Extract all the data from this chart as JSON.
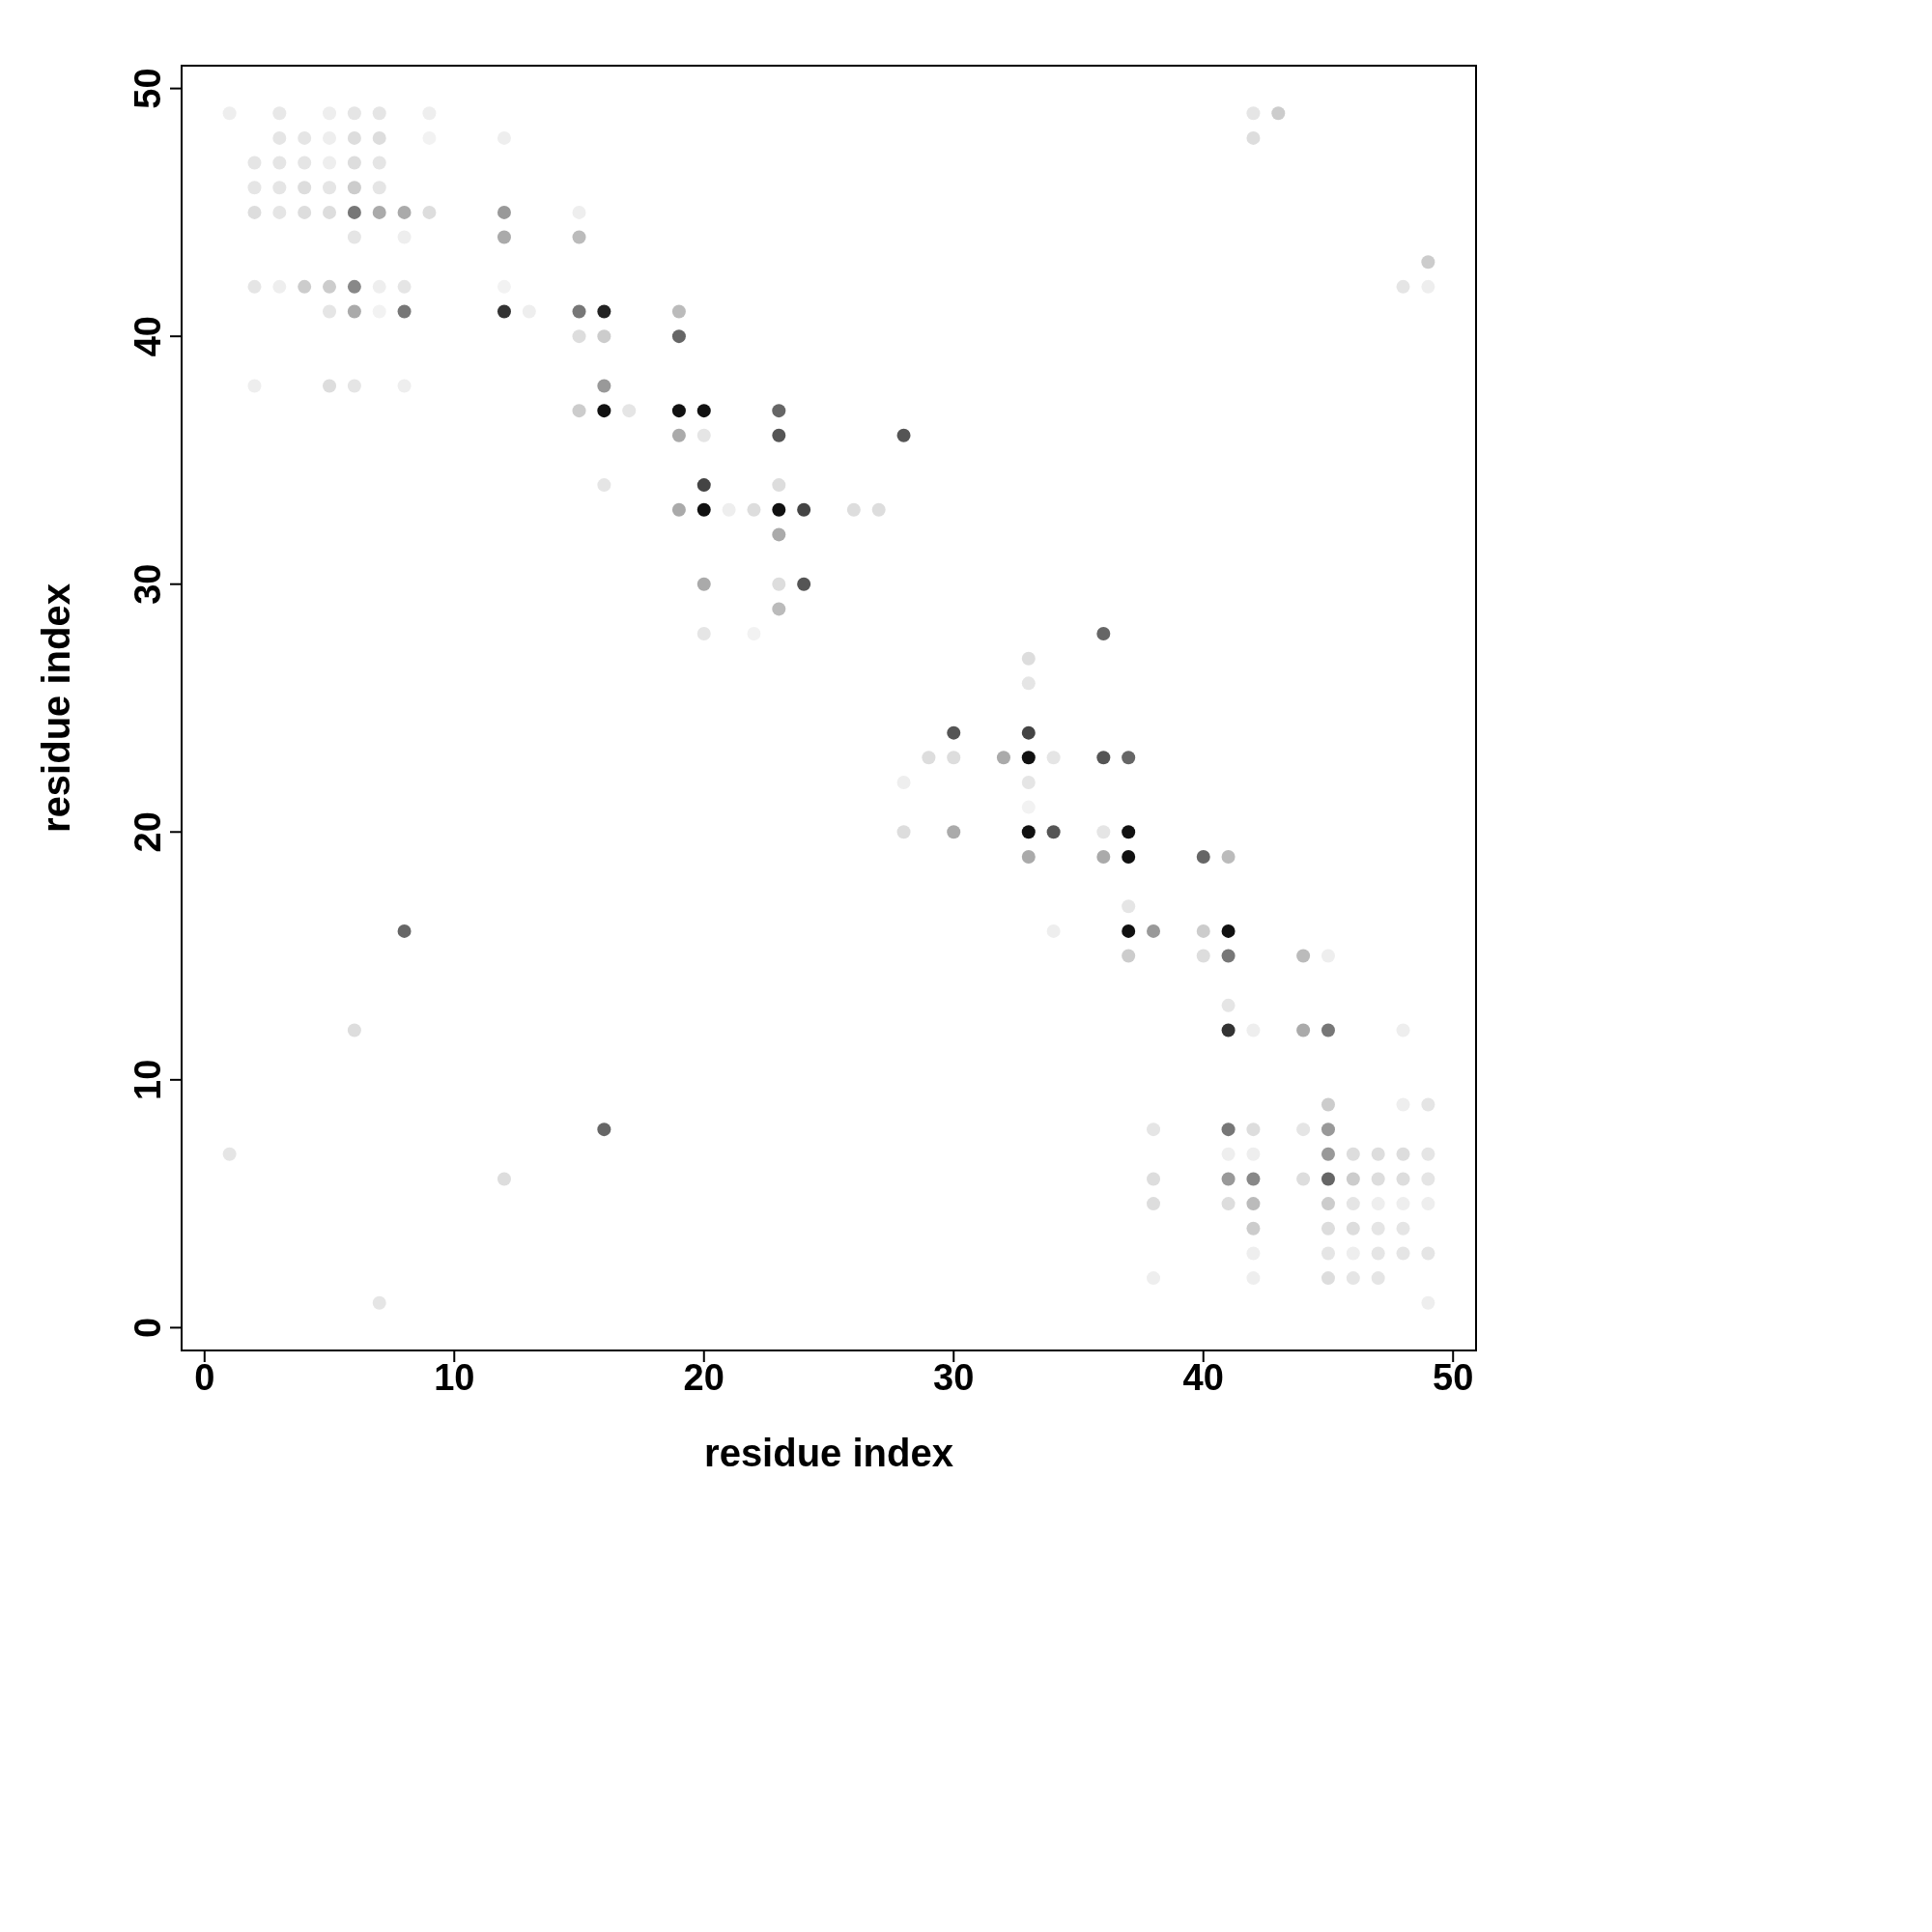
{
  "chart_data": {
    "type": "scatter",
    "xlabel": "residue index",
    "ylabel": "residue index",
    "xlim": [
      -0.92,
      50.92
    ],
    "ylim": [
      -0.92,
      50.92
    ],
    "xticks": [
      0,
      10,
      20,
      30,
      40,
      50
    ],
    "yticks": [
      0,
      10,
      20,
      30,
      40,
      50
    ],
    "grid": false,
    "marker": "circle",
    "x": [
      1,
      3,
      5,
      6,
      7,
      9,
      42,
      43,
      3,
      4,
      5,
      6,
      7,
      9,
      12,
      42,
      2,
      3,
      4,
      5,
      6,
      7,
      2,
      3,
      4,
      5,
      6,
      7,
      2,
      3,
      4,
      5,
      6,
      7,
      8,
      9,
      12,
      15,
      6,
      8,
      12,
      15,
      49,
      2,
      3,
      4,
      5,
      6,
      7,
      8,
      12,
      48,
      49,
      5,
      6,
      7,
      8,
      12,
      13,
      15,
      16,
      19,
      15,
      16,
      19,
      2,
      5,
      6,
      8,
      16,
      15,
      16,
      17,
      19,
      20,
      23,
      19,
      20,
      23,
      28,
      16,
      20,
      23,
      19,
      20,
      21,
      22,
      23,
      24,
      26,
      27,
      23,
      20,
      23,
      24,
      23,
      20,
      22,
      36,
      33,
      33,
      30,
      33,
      29,
      30,
      32,
      33,
      34,
      36,
      37,
      28,
      33,
      33,
      28,
      30,
      33,
      34,
      36,
      37,
      33,
      36,
      37,
      40,
      41,
      37,
      8,
      34,
      37,
      38,
      40,
      41,
      37,
      40,
      41,
      44,
      45,
      41,
      6,
      41,
      42,
      44,
      45,
      48,
      45,
      48,
      49,
      16,
      38,
      41,
      42,
      44,
      45,
      1,
      41,
      42,
      45,
      46,
      47,
      48,
      49,
      12,
      38,
      41,
      42,
      44,
      45,
      46,
      47,
      48,
      49,
      38,
      41,
      42,
      45,
      46,
      47,
      48,
      49,
      42,
      45,
      46,
      47,
      48,
      42,
      45,
      46,
      47,
      48,
      49,
      38,
      42,
      45,
      46,
      47,
      7,
      49
    ],
    "values": [
      49,
      49,
      49,
      49,
      49,
      49,
      49,
      49,
      48,
      48,
      48,
      48,
      48,
      48,
      48,
      48,
      47,
      47,
      47,
      47,
      47,
      47,
      46,
      46,
      46,
      46,
      46,
      46,
      45,
      45,
      45,
      45,
      45,
      45,
      45,
      45,
      45,
      45,
      44,
      44,
      44,
      44,
      43,
      42,
      42,
      42,
      42,
      42,
      42,
      42,
      42,
      42,
      42,
      41,
      41,
      41,
      41,
      41,
      41,
      41,
      41,
      41,
      40,
      40,
      40,
      38,
      38,
      38,
      38,
      38,
      37,
      37,
      37,
      37,
      37,
      37,
      36,
      36,
      36,
      36,
      34,
      34,
      34,
      33,
      33,
      33,
      33,
      33,
      33,
      33,
      33,
      32,
      30,
      30,
      30,
      29,
      28,
      28,
      28,
      27,
      26,
      24,
      24,
      23,
      23,
      23,
      23,
      23,
      23,
      23,
      22,
      22,
      21,
      20,
      20,
      20,
      20,
      20,
      20,
      19,
      19,
      19,
      19,
      19,
      17,
      16,
      16,
      16,
      16,
      16,
      16,
      15,
      15,
      15,
      15,
      15,
      13,
      12,
      12,
      12,
      12,
      12,
      12,
      9,
      9,
      9,
      8,
      8,
      8,
      8,
      8,
      8,
      7,
      7,
      7,
      7,
      7,
      7,
      7,
      7,
      6,
      6,
      6,
      6,
      6,
      6,
      6,
      6,
      6,
      6,
      5,
      5,
      5,
      5,
      5,
      5,
      5,
      5,
      4,
      4,
      4,
      4,
      4,
      3,
      3,
      3,
      3,
      3,
      3,
      2,
      2,
      2,
      2,
      2,
      1,
      1
    ],
    "colors": [
      "#eeeeee",
      "#e8e8e8",
      "#eeeeee",
      "#e5e5e5",
      "#e5e5e5",
      "#eeeeee",
      "#e5e5e5",
      "#cccccc",
      "#e5e5e5",
      "#e5e5e5",
      "#eeeeee",
      "#dddddd",
      "#dddddd",
      "#f2f2f2",
      "#eeeeee",
      "#dddddd",
      "#e5e5e5",
      "#e5e5e5",
      "#e5e5e5",
      "#eeeeee",
      "#dddddd",
      "#e5e5e5",
      "#e5e5e5",
      "#e5e5e5",
      "#dddddd",
      "#e5e5e5",
      "#cccccc",
      "#e5e5e5",
      "#dddddd",
      "#e5e5e5",
      "#dddddd",
      "#dddddd",
      "#777777",
      "#aaaaaa",
      "#aaaaaa",
      "#dddddd",
      "#999999",
      "#eeeeee",
      "#e5e5e5",
      "#eeeeee",
      "#aaaaaa",
      "#bbbbbb",
      "#cccccc",
      "#e5e5e5",
      "#eeeeee",
      "#cccccc",
      "#cccccc",
      "#888888",
      "#eeeeee",
      "#e5e5e5",
      "#f2f2f2",
      "#e5e5e5",
      "#eeeeee",
      "#e5e5e5",
      "#aaaaaa",
      "#f2f2f2",
      "#777777",
      "#333333",
      "#eeeeee",
      "#777777",
      "#222222",
      "#bbbbbb",
      "#dddddd",
      "#cccccc",
      "#666666",
      "#eeeeee",
      "#dddddd",
      "#e5e5e5",
      "#eeeeee",
      "#999999",
      "#cccccc",
      "#111111",
      "#e5e5e5",
      "#111111",
      "#111111",
      "#666666",
      "#aaaaaa",
      "#e5e5e5",
      "#555555",
      "#555555",
      "#e5e5e5",
      "#444444",
      "#dddddd",
      "#aaaaaa",
      "#111111",
      "#eeeeee",
      "#dddddd",
      "#111111",
      "#444444",
      "#dddddd",
      "#dddddd",
      "#aaaaaa",
      "#aaaaaa",
      "#dddddd",
      "#555555",
      "#bbbbbb",
      "#e5e5e5",
      "#f2f2f2",
      "#666666",
      "#dddddd",
      "#e5e5e5",
      "#555555",
      "#444444",
      "#dddddd",
      "#dddddd",
      "#aaaaaa",
      "#111111",
      "#e5e5e5",
      "#555555",
      "#666666",
      "#eeeeee",
      "#e5e5e5",
      "#f2f2f2",
      "#dddddd",
      "#aaaaaa",
      "#111111",
      "#555555",
      "#e5e5e5",
      "#111111",
      "#aaaaaa",
      "#aaaaaa",
      "#111111",
      "#666666",
      "#bbbbbb",
      "#e5e5e5",
      "#666666",
      "#eeeeee",
      "#111111",
      "#999999",
      "#cccccc",
      "#111111",
      "#cccccc",
      "#dddddd",
      "#777777",
      "#bbbbbb",
      "#eeeeee",
      "#e5e5e5",
      "#dddddd",
      "#333333",
      "#eeeeee",
      "#aaaaaa",
      "#777777",
      "#eeeeee",
      "#cccccc",
      "#eeeeee",
      "#e5e5e5",
      "#666666",
      "#e5e5e5",
      "#777777",
      "#dddddd",
      "#e5e5e5",
      "#999999",
      "#e5e5e5",
      "#eeeeee",
      "#eeeeee",
      "#999999",
      "#dddddd",
      "#dddddd",
      "#dddddd",
      "#e5e5e5",
      "#dddddd",
      "#dddddd",
      "#999999",
      "#888888",
      "#dddddd",
      "#666666",
      "#cccccc",
      "#dddddd",
      "#dddddd",
      "#e5e5e5",
      "#dddddd",
      "#dddddd",
      "#bbbbbb",
      "#cccccc",
      "#e5e5e5",
      "#eeeeee",
      "#eeeeee",
      "#eeeeee",
      "#cccccc",
      "#dddddd",
      "#dddddd",
      "#e5e5e5",
      "#e5e5e5",
      "#eeeeee",
      "#e5e5e5",
      "#eeeeee",
      "#e5e5e5",
      "#e5e5e5",
      "#e5e5e5",
      "#eeeeee",
      "#eeeeee",
      "#dddddd",
      "#e5e5e5",
      "#e5e5e5",
      "#e5e5e5",
      "#eeeeee"
    ]
  }
}
